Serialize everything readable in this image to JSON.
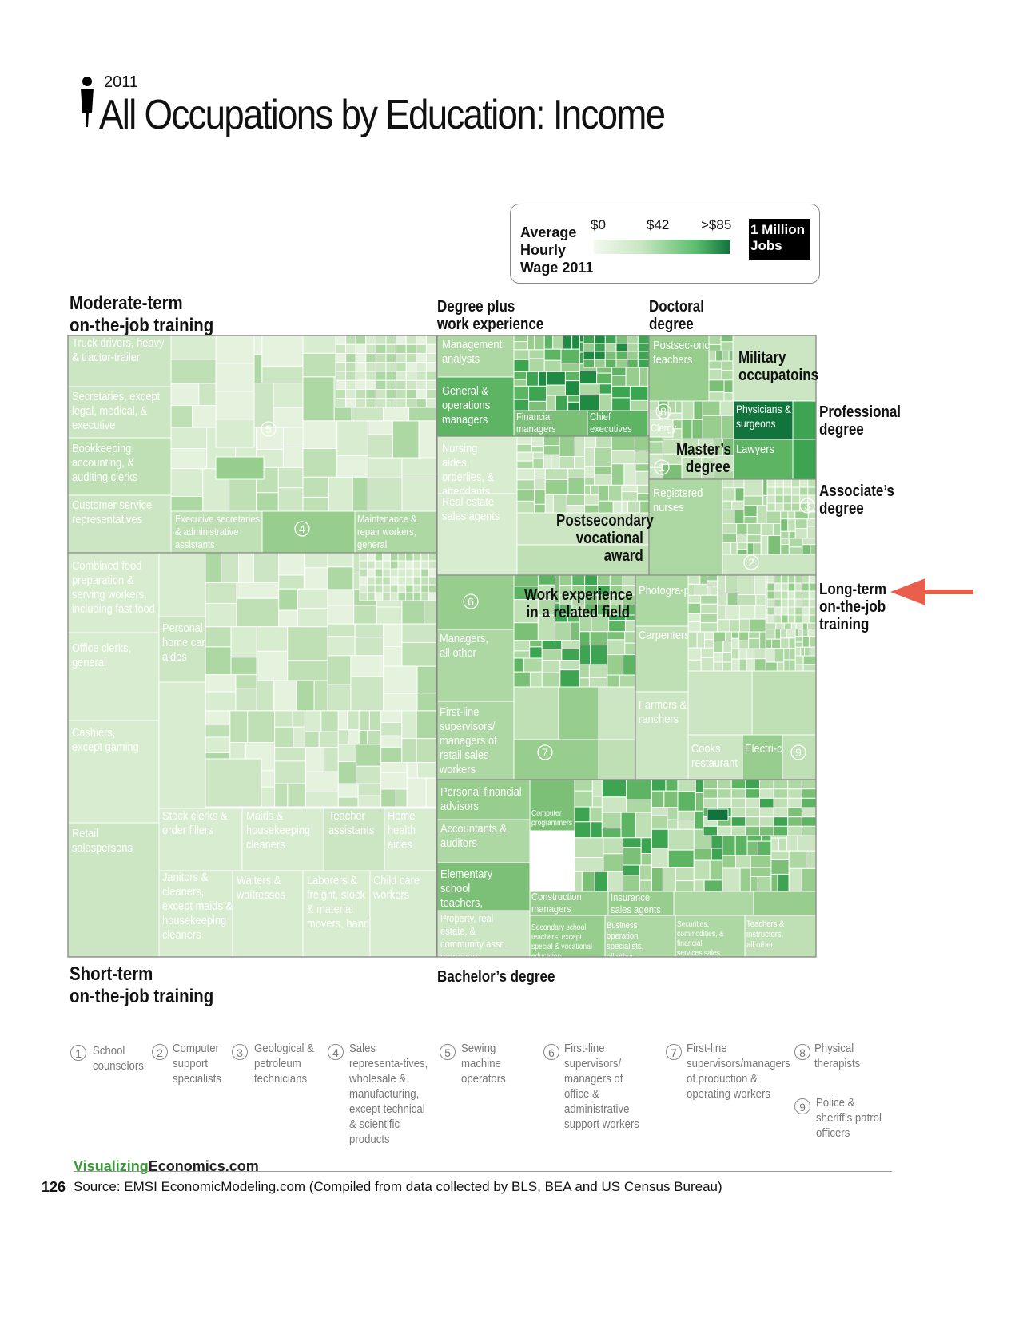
{
  "header": {
    "year": "2011",
    "title": "All Occupations by Education: Income"
  },
  "legend": {
    "caption": "Average Hourly Wage 2011",
    "ticks": [
      "$0",
      "$42",
      ">$85"
    ],
    "jobs_label": "1 Million Jobs"
  },
  "colors": {
    "low": "#f2f9ef",
    "mid": "#c8e6c0",
    "high": "#11743c",
    "cell_border": "#ffffff",
    "group_border": "#8a8a8a",
    "label_light": "#ffffff"
  },
  "chart_data": {
    "type": "treemap",
    "title": "All Occupations by Education: Income",
    "value_encoding": "area = jobs, color = average hourly wage 2011",
    "color_scale": {
      "min": "$0",
      "mid": "$42",
      "max": ">$85"
    },
    "groups": [
      "Moderate-term on-the-job training",
      "Degree plus work experience",
      "Doctoral degree",
      "Professional degree",
      "Master’s degree",
      "Associate’s degree",
      "Postsecondary vocational award",
      "Work experience in a related field",
      "Long-term on-the-job training",
      "Short-term on-the-job training",
      "Bachelor’s degree",
      "Military occupatoins"
    ],
    "annotation": "arrow pointing to Long-term on-the-job training",
    "labeled_occupations": [
      "Truck drivers, heavy & tractor-trailer",
      "Secretaries, except legal, medical, & executive",
      "Bookkeeping, accounting, & auditing clerks",
      "Customer service representatives",
      "Executive secretaries & administrative assistants",
      "Maintenance & repair workers, general",
      "Management analysts",
      "General & operations managers",
      "Financial managers",
      "Chief executives",
      "Postsec-ondary teachers",
      "Clergy",
      "Physicians & surgeons",
      "Lawyers",
      "Nursing aides, orderlies, & attendants",
      "Real estate sales agents",
      "Registered nurses",
      "Managers, all other",
      "First-line supervisors/ managers of retail sales workers",
      "Photogra-phers",
      "Carpenters",
      "Farmers & ranchers",
      "Cooks, restaurant",
      "Electri-cians",
      "Combined food preparation & serving workers, including fast food",
      "Personal & home care aides",
      "Office clerks, general",
      "Cashiers, except gaming",
      "Retail salespersons",
      "Stock clerks & order fillers",
      "Maids & housekeeping cleaners",
      "Teacher assistants",
      "Home health aides",
      "Janitors & cleaners, except maids & housekeeping cleaners",
      "Waiters & waitresses",
      "Laborers & freight, stock & material movers, hand",
      "Child care workers",
      "Personal financial advisors",
      "Accountants & auditors",
      "Computer programmers",
      "Elementary school teachers, except special education",
      "Construction managers",
      "Insurance sales agents",
      "Property, real estate, & community assn. managers",
      "Secondary school teachers, except special & vocational education",
      "Business operation specialists, all other",
      "Securities, commodities, & financial services sales agents",
      "Teachers & instructors, all other"
    ]
  },
  "group_labels": {
    "moderate": "Moderate-term on-the-job training",
    "moderate_l1": "Moderate-term",
    "moderate_l2": "on-the-job training",
    "degree_plus_l1": "Degree plus",
    "degree_plus_l2": "work experience",
    "doctoral_l1": "Doctoral",
    "doctoral_l2": "degree",
    "military_l1": "Military",
    "military_l2": "occupatoins",
    "professional_l1": "Professional",
    "professional_l2": "degree",
    "masters_l1": "Master’s",
    "masters_l2": "degree",
    "associates_l1": "Associate’s",
    "associates_l2": "degree",
    "vocational_l1": "Postsecondary",
    "vocational_l2": "vocational",
    "vocational_l3": "award",
    "workexp_l1": "Work experience",
    "workexp_l2": "in a related field",
    "longterm_l1": "Long-term",
    "longterm_l2": "on-the-job",
    "longterm_l3": "training",
    "shortterm_l1": "Short-term",
    "shortterm_l2": "on-the-job training",
    "bachelors": "Bachelor’s degree"
  },
  "footnotes": [
    {
      "num": "1",
      "text": "School counselors"
    },
    {
      "num": "2",
      "text": "Computer support specialists"
    },
    {
      "num": "3",
      "text": "Geological & petroleum technicians"
    },
    {
      "num": "4",
      "text": "Sales representa-tives, wholesale & manufacturing, except technical & scientific products"
    },
    {
      "num": "5",
      "text": "Sewing machine operators"
    },
    {
      "num": "6",
      "text": "First-line supervisors/ managers of office & administrative support workers"
    },
    {
      "num": "7",
      "text": "First-line supervisors/managers of production & operating workers"
    },
    {
      "num": "8",
      "text": "Physical therapists"
    },
    {
      "num": "9",
      "text": "Police & sheriff’s patrol officers"
    }
  ],
  "footer": {
    "brand_a": "Visualizing",
    "brand_b": "Economics.com",
    "page": "126",
    "source": "Source: EMSI EconomicModeling.com (Compiled from data collected by BLS, BEA and US Census Bureau)"
  }
}
